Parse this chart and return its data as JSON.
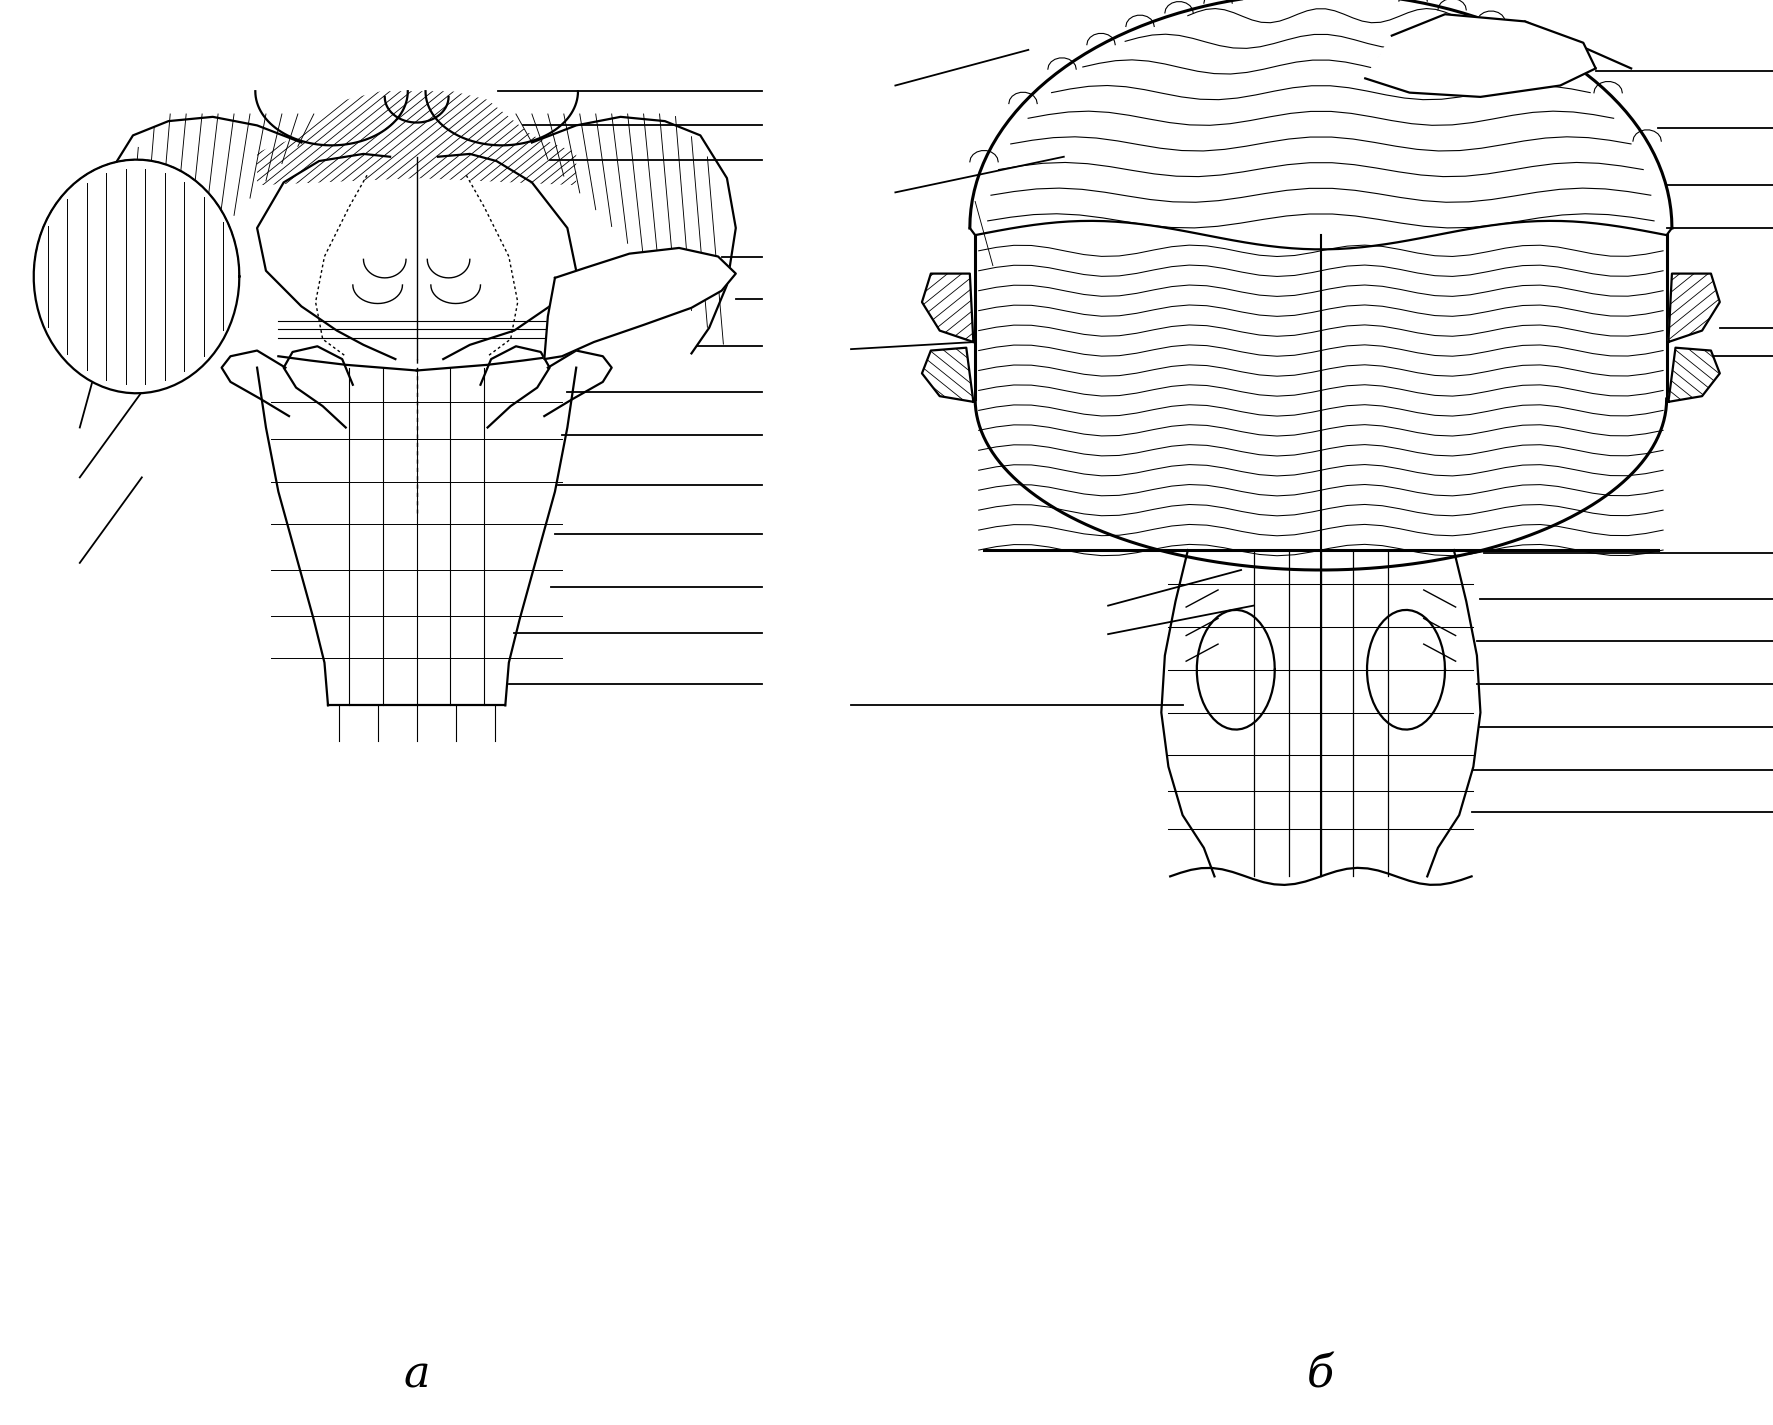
{
  "bg_color": "#ffffff",
  "line_color": "#000000",
  "label_a": "a",
  "label_b": "б",
  "fig_width": 17.73,
  "fig_height": 14.25,
  "lw_main": 1.6,
  "lw_thin": 1.0,
  "lw_thick": 2.2,
  "lw_ann": 1.3
}
